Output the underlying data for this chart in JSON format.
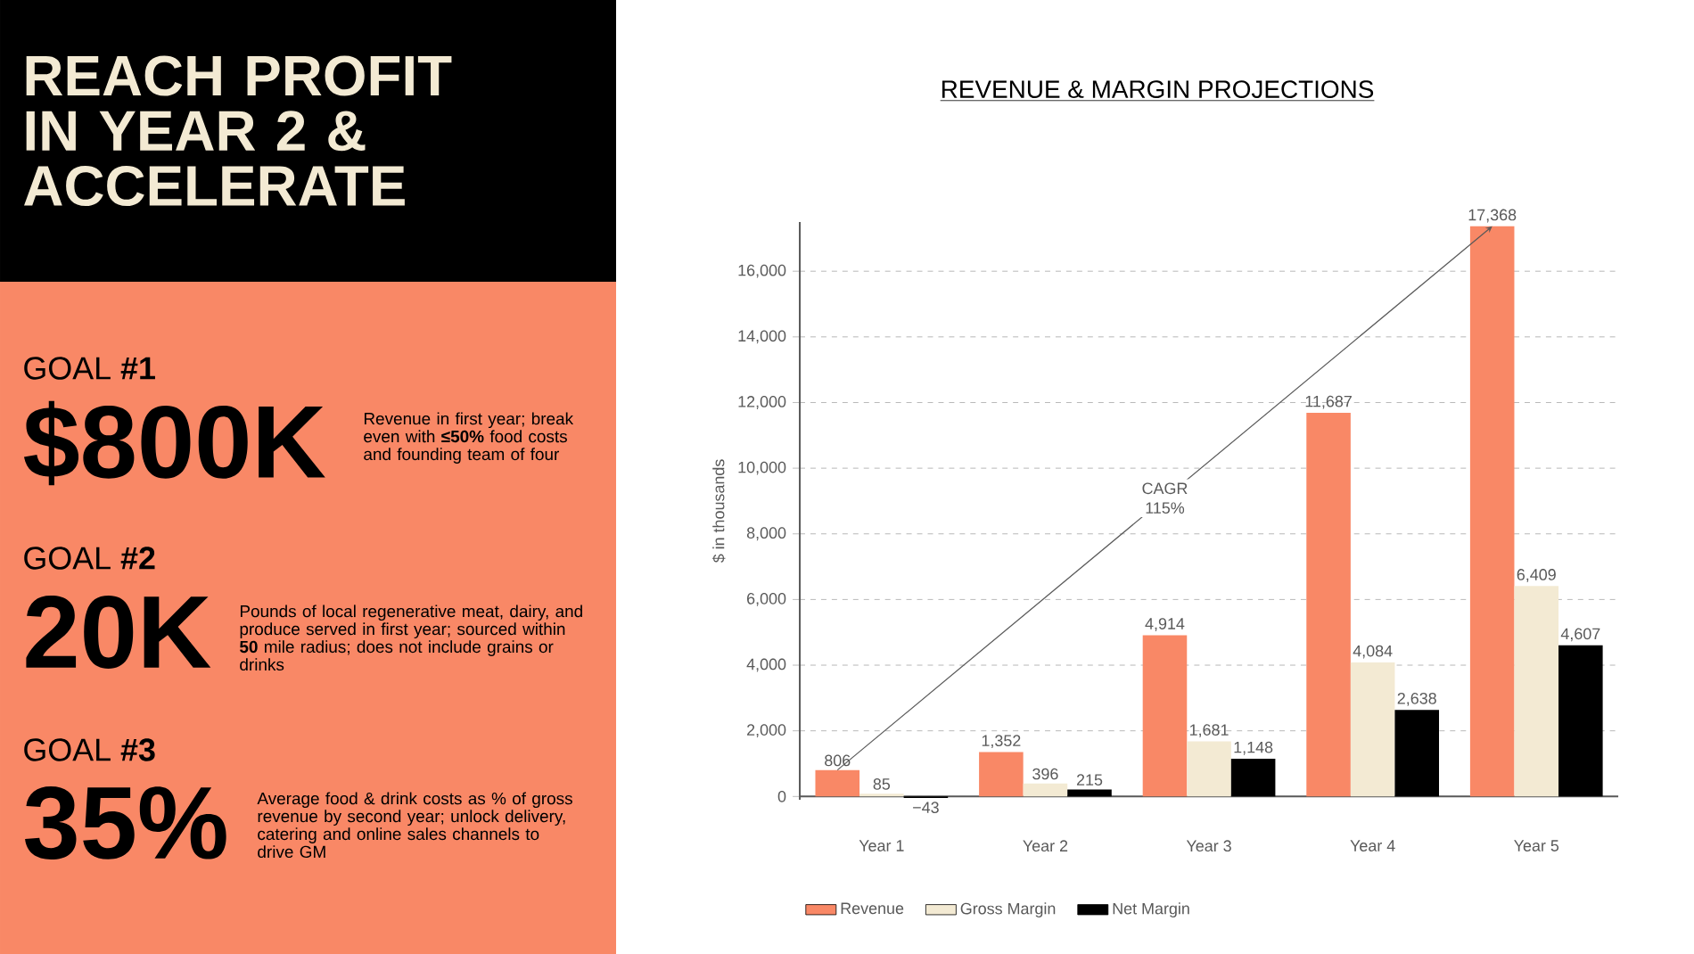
{
  "chart_data": [
    {
      "type": "other",
      "title": "REACH PROFIT IN YEAR 2 & ACCELERATE",
      "annotations": [
        "GOAL **#1**",
        "$800K",
        "Revenue in first year; break even with **≤50%** food costs and founding team of four",
        "GOAL **#2**",
        "20K",
        "Pounds of local regenerative meat, dairy, and produce served in first year; sourced within **50** mile radius; does not include grains or drinks",
        "GOAL **#3**",
        "35%",
        "Average food & drink costs as % of gross revenue by second year; unlock delivery, catering and online sales channels to drive GM"
      ]
    },
    {
      "type": "bar",
      "title": "REVENUE & MARGIN PROJECTIONS",
      "ylabel": "$ in thousands",
      "categories": [
        "Year 1",
        "Year 2",
        "Year 3",
        "Year 4",
        "Year 5"
      ],
      "series": [
        {
          "name": "Revenue",
          "color": "#f98866",
          "values": [
            806,
            1352,
            4914,
            11687,
            17368
          ],
          "value_labels": [
            "806",
            "1,352",
            "4,914",
            "11,687",
            "17,368"
          ]
        },
        {
          "name": "Gross Margin",
          "color": "#f3ead3",
          "values": [
            85,
            396,
            1681,
            4084,
            6409
          ],
          "value_labels": [
            "85",
            "396",
            "1,681",
            "4,084",
            "6,409"
          ]
        },
        {
          "name": "Net Margin",
          "color": "#000000",
          "values": [
            -43,
            215,
            1148,
            2638,
            4607
          ],
          "value_labels": [
            "−43",
            "215",
            "1,148",
            "2,638",
            "4,607"
          ]
        }
      ],
      "ylim": [
        -100,
        17500
      ],
      "yticks": [
        0,
        {
          "value": 2000,
          "label": "2,000"
        },
        {
          "value": 4000,
          "label": "4,000"
        },
        {
          "value": 6000,
          "label": "6,000"
        },
        {
          "value": 8000,
          "label": "8,000"
        },
        {
          "value": 10000,
          "label": "10,000"
        },
        {
          "value": 12000,
          "label": "12,000"
        },
        {
          "value": 14000,
          "label": "14,000"
        },
        {
          "value": 16000,
          "label": "16,000"
        }
      ],
      "grid": "y",
      "legend": "bottom",
      "annotations": [
        "CAGR 115%"
      ]
    }
  ]
}
